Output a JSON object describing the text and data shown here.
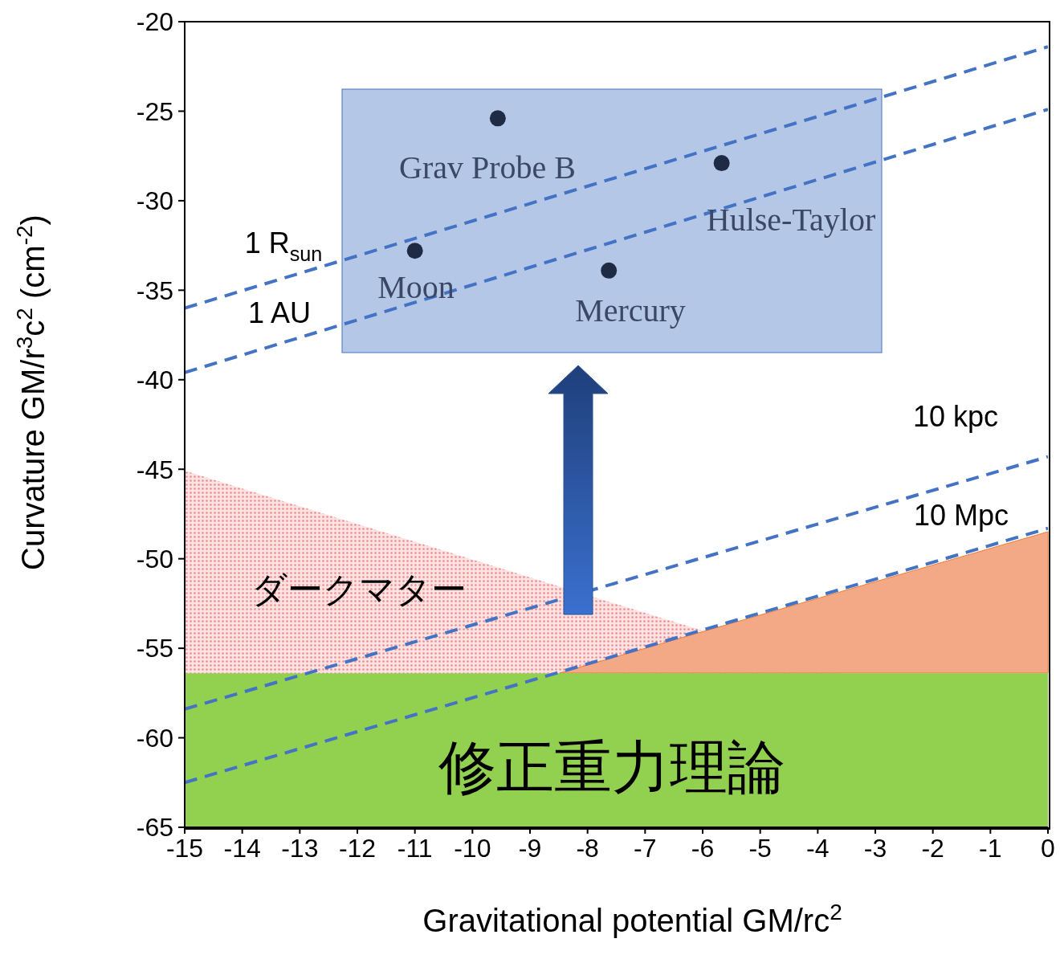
{
  "chart_data": {
    "type": "scatter",
    "xlabel": "Gravitational potential    GM/rc$^{2}$",
    "ylabel": "Curvature    GM/r$^{3}$c$^{2}$ (cm$^{-2}$)",
    "xlim": [
      -15,
      0
    ],
    "xticks": [
      -15,
      -14,
      -13,
      -12,
      -11,
      -10,
      -9,
      -8,
      -7,
      -6,
      -5,
      -4,
      -3,
      -2,
      -1,
      0
    ],
    "ylim": [
      -65,
      -20
    ],
    "yticks": [
      -65,
      -60,
      -55,
      -50,
      -45,
      -40,
      -35,
      -30,
      -25,
      -20
    ],
    "series": [
      {
        "type": "line",
        "color": "#4472c4",
        "line_style": "dashed",
        "x": [
          -15,
          0
        ],
        "values": [
          -36.0,
          -21.4
        ]
      },
      {
        "type": "line",
        "color": "#4472c4",
        "line_style": "dashed",
        "x": [
          -15,
          0
        ],
        "values": [
          -39.6,
          -24.9
        ]
      },
      {
        "type": "line",
        "color": "#4472c4",
        "line_style": "dashed",
        "x": [
          -15,
          0
        ],
        "values": [
          -58.4,
          -44.3
        ]
      },
      {
        "type": "line",
        "color": "#4472c4",
        "line_style": "dashed",
        "x": [
          -15,
          0
        ],
        "values": [
          -62.5,
          -48.3
        ]
      },
      {
        "color": "#1f2a44",
        "marker": "circle",
        "x": [
          -9.56,
          -5.67,
          -11.0,
          -7.63
        ],
        "values": [
          -25.4,
          -27.9,
          -32.8,
          -33.9
        ]
      }
    ],
    "bands": [
      {
        "axis": "y",
        "from": -65,
        "to": -56.4,
        "color": "#92d050"
      }
    ],
    "annotations": [
      "Grav Probe B",
      "Hulse-Taylor",
      "Moon",
      "Mercury",
      "1 R$_{sun}$",
      "1 AU",
      "10 kpc",
      "10 Mpc",
      "ダークマター",
      "修正重力理論"
    ]
  }
}
